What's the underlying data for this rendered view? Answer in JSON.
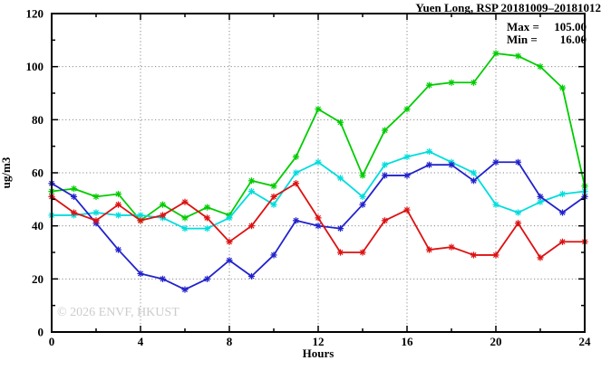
{
  "chart_data": {
    "type": "line",
    "title": "Yuen Long, RSP 20181009–20181012",
    "xlabel": "Hours",
    "ylabel": "ug/m3",
    "xlim": [
      0,
      24
    ],
    "ylim": [
      0,
      120
    ],
    "xticks_major": [
      0,
      4,
      8,
      12,
      16,
      20,
      24
    ],
    "xticks_minor": [
      2,
      6,
      10,
      14,
      18,
      22
    ],
    "yticks_major": [
      0,
      20,
      40,
      60,
      80,
      100,
      120
    ],
    "yticks_minor": [
      10,
      30,
      50,
      70,
      90,
      110
    ],
    "grid_x": [
      4,
      8,
      12,
      16,
      20
    ],
    "grid_y": [
      20,
      40,
      60,
      80,
      100
    ],
    "grid_on": true,
    "legend_position": "none",
    "x": [
      0,
      1,
      2,
      3,
      4,
      5,
      6,
      7,
      8,
      9,
      10,
      11,
      12,
      13,
      14,
      15,
      16,
      17,
      18,
      19,
      20,
      21,
      22,
      23,
      24
    ],
    "series": [
      {
        "name": "green",
        "color": "#00cc00",
        "values": [
          53,
          54,
          51,
          52,
          42,
          48,
          43,
          47,
          44,
          57,
          55,
          66,
          84,
          79,
          59,
          76,
          84,
          93,
          94,
          94,
          105,
          104,
          100,
          92,
          55
        ]
      },
      {
        "name": "cyan",
        "color": "#00dddd",
        "values": [
          44,
          44,
          45,
          44,
          44,
          43,
          39,
          39,
          43,
          53,
          48,
          60,
          64,
          58,
          51,
          63,
          66,
          68,
          64,
          60,
          48,
          45,
          49,
          52,
          53
        ]
      },
      {
        "name": "blue",
        "color": "#2222cc",
        "values": [
          56,
          51,
          41,
          31,
          22,
          20,
          16,
          20,
          27,
          21,
          29,
          42,
          40,
          39,
          48,
          59,
          59,
          63,
          63,
          57,
          64,
          64,
          51,
          45,
          51
        ]
      },
      {
        "name": "red",
        "color": "#dd1111",
        "values": [
          51,
          45,
          42,
          48,
          42,
          44,
          49,
          43,
          34,
          40,
          51,
          56,
          43,
          30,
          30,
          42,
          46,
          31,
          32,
          29,
          29,
          41,
          28,
          34,
          34
        ]
      }
    ],
    "annotations": {
      "max_label": "Max =",
      "max_value": "105.00",
      "min_label": "Min =",
      "min_value": "16.00"
    },
    "watermark": "© 2026 ENVF, HKUST"
  }
}
